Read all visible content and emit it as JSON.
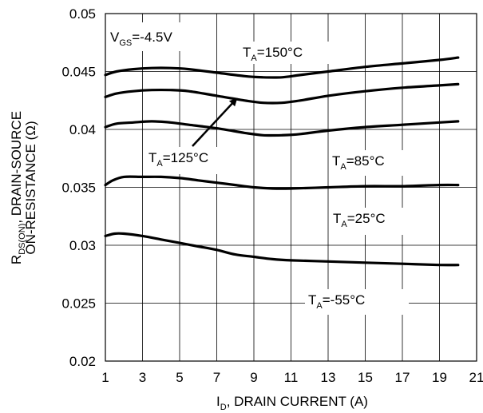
{
  "chart_data": {
    "type": "line",
    "title": "",
    "xlabel": {
      "main": "I",
      "sub": "D",
      "rest": ", DRAIN CURRENT (A)"
    },
    "ylabel": {
      "line1_main": "R",
      "line1_sub": "DS(ON)",
      "line1_rest": ",   DRAIN-SOURCE",
      "line2": "ON-RESISTANCE (Ω)"
    },
    "xlim": [
      1,
      21
    ],
    "ylim": [
      0.02,
      0.05
    ],
    "xticks": [
      1,
      3,
      5,
      7,
      9,
      11,
      13,
      15,
      17,
      19,
      21
    ],
    "yticks": [
      "0.02",
      "0.025",
      "0.03",
      "0.035",
      "0.04",
      "0.045",
      "0.05"
    ],
    "grid": true,
    "line_color": "#000000",
    "annotations": {
      "vgs": {
        "main": "V",
        "sub": "GS",
        "rest": "=-4.5V"
      },
      "t150": {
        "main": "T",
        "sub": "A",
        "rest": "=150°C"
      },
      "t125": {
        "main": "T",
        "sub": "A",
        "rest": "=125°C"
      },
      "t85": {
        "main": "T",
        "sub": "A",
        "rest": "=85°C"
      },
      "t25": {
        "main": "T",
        "sub": "A",
        "rest": "=25°C"
      },
      "tm55": {
        "main": "T",
        "sub": "A",
        "rest": "=-55°C"
      }
    },
    "series": [
      {
        "x": [
          1,
          1.6,
          2.5,
          3.5,
          4.5,
          5.5,
          7,
          8.5,
          9.5,
          10.5,
          11.5,
          13,
          15,
          17,
          19,
          20
        ],
        "y": [
          0.0447,
          0.045,
          0.0452,
          0.0453,
          0.0453,
          0.0452,
          0.0449,
          0.0446,
          0.0445,
          0.0445,
          0.0447,
          0.045,
          0.0454,
          0.0457,
          0.046,
          0.0462
        ]
      },
      {
        "x": [
          1,
          1.6,
          2.5,
          3.5,
          4.5,
          5.5,
          7,
          8.5,
          9.5,
          10.5,
          11.5,
          13,
          15,
          17,
          19,
          20
        ],
        "y": [
          0.0428,
          0.0431,
          0.0433,
          0.0434,
          0.0434,
          0.0433,
          0.0429,
          0.0425,
          0.0423,
          0.0423,
          0.0425,
          0.0429,
          0.0433,
          0.0436,
          0.0438,
          0.0439
        ]
      },
      {
        "x": [
          1,
          1.6,
          2.5,
          3.5,
          4.5,
          5.5,
          7,
          8.5,
          9.5,
          10.5,
          11.5,
          13,
          15,
          17,
          19,
          20
        ],
        "y": [
          0.0402,
          0.0405,
          0.0406,
          0.0407,
          0.0406,
          0.0404,
          0.0401,
          0.0397,
          0.0395,
          0.0395,
          0.0396,
          0.0399,
          0.0402,
          0.0404,
          0.0406,
          0.0407
        ]
      },
      {
        "x": [
          1,
          1.4,
          2,
          3,
          4,
          5,
          6,
          7,
          8,
          9,
          10,
          11,
          13,
          15,
          17,
          19,
          20
        ],
        "y": [
          0.0352,
          0.0356,
          0.0359,
          0.0359,
          0.0359,
          0.0358,
          0.0356,
          0.0354,
          0.0352,
          0.035,
          0.0349,
          0.0349,
          0.035,
          0.0351,
          0.0351,
          0.0352,
          0.0352
        ]
      },
      {
        "x": [
          1,
          1.5,
          2,
          3,
          4,
          5,
          6,
          7,
          8,
          9,
          10,
          11,
          13,
          15,
          17,
          19,
          20
        ],
        "y": [
          0.0308,
          0.031,
          0.031,
          0.0308,
          0.0305,
          0.0302,
          0.0299,
          0.0296,
          0.0292,
          0.029,
          0.0288,
          0.0287,
          0.0286,
          0.0285,
          0.0284,
          0.0283,
          0.0283
        ]
      }
    ]
  }
}
